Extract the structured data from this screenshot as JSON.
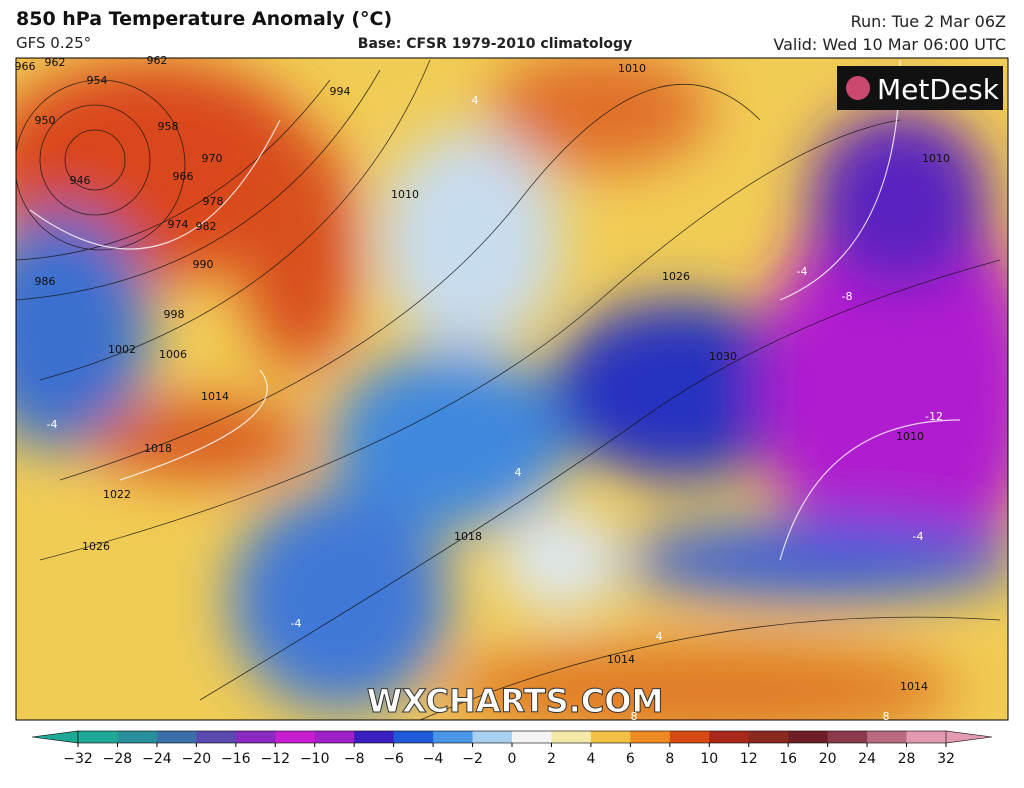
{
  "header": {
    "title": "850 hPa Temperature Anomaly (°C)",
    "model": "GFS 0.25°",
    "base": "Base: CFSR 1979-2010 climatology",
    "run": "Run: Tue 2 Mar 06Z",
    "valid": "Valid: Wed 10 Mar 06:00 UTC"
  },
  "logo": "MetDesk",
  "watermark": "WXCHARTS.COM",
  "contour_labels": [
    966,
    962,
    954,
    962,
    950,
    958,
    970,
    946,
    966,
    974,
    978,
    982,
    986,
    990,
    994,
    998,
    1002,
    1006,
    1010,
    1014,
    1018,
    1022,
    1026,
    1010,
    1026,
    1030,
    1010,
    1018,
    1014,
    1014,
    4,
    -4,
    -4,
    -8,
    -12,
    4,
    -4,
    4,
    -4,
    8,
    8,
    1010
  ],
  "colorbar": {
    "ticks": [
      {
        "value": -32,
        "label": "−32"
      },
      {
        "value": -28,
        "label": "−28"
      },
      {
        "value": -24,
        "label": "−24"
      },
      {
        "value": -20,
        "label": "−20"
      },
      {
        "value": -16,
        "label": "−16"
      },
      {
        "value": -12,
        "label": "−12"
      },
      {
        "value": -10,
        "label": "−10"
      },
      {
        "value": -8,
        "label": "−8"
      },
      {
        "value": -6,
        "label": "−6"
      },
      {
        "value": -4,
        "label": "−4"
      },
      {
        "value": -2,
        "label": "−2"
      },
      0,
      2,
      4,
      6,
      8,
      10,
      12,
      16,
      20,
      24,
      28,
      32
    ],
    "colors": [
      "#1fa896",
      "#2a8f9c",
      "#3a6fa8",
      "#5a4ab0",
      "#8a2ac0",
      "#c81ed0",
      "#a020c8",
      "#3a1ec0",
      "#1f5bd8",
      "#4a96e6",
      "#a8d0f0",
      "#f4f4f4",
      "#f5e9a8",
      "#f3c046",
      "#ee8a22",
      "#d84a14",
      "#a8281a",
      "#8a2a1e",
      "#6e1e24",
      "#8a3a4a",
      "#b86a7e",
      "#e29ab0"
    ]
  }
}
